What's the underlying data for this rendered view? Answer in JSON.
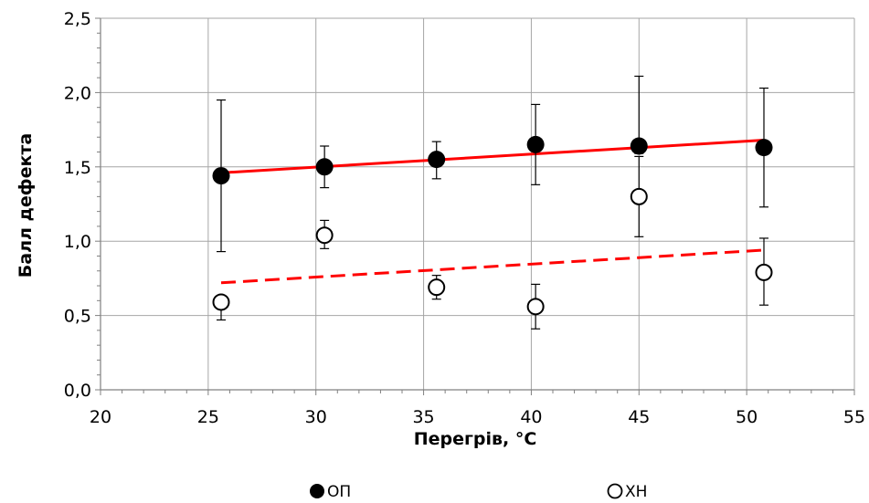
{
  "chart_data": {
    "type": "scatter",
    "xlabel": "Перегрів, °C",
    "ylabel": "Балл дефекта",
    "xlim": [
      20,
      55
    ],
    "ylim": [
      0,
      2.5
    ],
    "x_ticks": [
      "20",
      "25",
      "30",
      "35",
      "40",
      "45",
      "50",
      "55"
    ],
    "y_ticks": [
      "0,0",
      "0,5",
      "1,0",
      "1,5",
      "2,0",
      "2,5"
    ],
    "grid": true,
    "legend_position": "bottom",
    "series": [
      {
        "name": "ОП",
        "marker": "filled-circle",
        "color": "#000000",
        "points": [
          {
            "x": 25.6,
            "y": 1.44,
            "err_low": 0.51,
            "err_high": 0.51
          },
          {
            "x": 30.4,
            "y": 1.5,
            "err_low": 0.14,
            "err_high": 0.14
          },
          {
            "x": 35.6,
            "y": 1.55,
            "err_low": 0.13,
            "err_high": 0.12
          },
          {
            "x": 40.2,
            "y": 1.65,
            "err_low": 0.27,
            "err_high": 0.27
          },
          {
            "x": 45.0,
            "y": 1.64,
            "err_low": 0.05,
            "err_high": 0.47
          },
          {
            "x": 50.8,
            "y": 1.63,
            "err_low": 0.4,
            "err_high": 0.4
          }
        ]
      },
      {
        "name": "ХН",
        "marker": "open-circle",
        "color": "#000000",
        "points": [
          {
            "x": 25.6,
            "y": 0.59,
            "err_low": 0.12,
            "err_high": 0.0
          },
          {
            "x": 30.4,
            "y": 1.04,
            "err_low": 0.09,
            "err_high": 0.1
          },
          {
            "x": 35.6,
            "y": 0.69,
            "err_low": 0.08,
            "err_high": 0.08
          },
          {
            "x": 40.2,
            "y": 0.56,
            "err_low": 0.15,
            "err_high": 0.15
          },
          {
            "x": 45.0,
            "y": 1.3,
            "err_low": 0.27,
            "err_high": 0.27
          },
          {
            "x": 50.8,
            "y": 0.79,
            "err_low": 0.22,
            "err_high": 0.23
          }
        ]
      }
    ],
    "trendlines": [
      {
        "series": "ОП",
        "style": "solid",
        "color": "#ff0000",
        "x": [
          25.6,
          50.8
        ],
        "y": [
          1.46,
          1.68
        ]
      },
      {
        "series": "ХН",
        "style": "dashed",
        "color": "#ff0000",
        "x": [
          25.6,
          50.8
        ],
        "y": [
          0.72,
          0.94
        ]
      }
    ]
  }
}
